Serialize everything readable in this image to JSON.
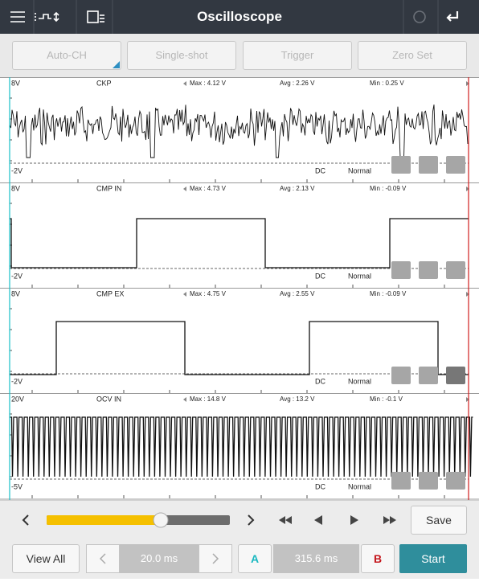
{
  "header": {
    "title": "Oscilloscope"
  },
  "toolbar": [
    "Auto-CH",
    "Single-shot",
    "Trigger",
    "Zero Set"
  ],
  "channels": [
    {
      "top": "8V",
      "name": "CKP",
      "max": "Max : 4.12 V",
      "avg": "Avg : 2.26 V",
      "min": "Min : 0.25 V",
      "bottom": "-2V",
      "coupling": "DC",
      "mode": "Normal"
    },
    {
      "top": "8V",
      "name": "CMP IN",
      "max": "Max : 4.73 V",
      "avg": "Avg : 2.13 V",
      "min": "Min : -0.09 V",
      "bottom": "-2V",
      "coupling": "DC",
      "mode": "Normal"
    },
    {
      "top": "8V",
      "name": "CMP EX",
      "max": "Max : 4.75 V",
      "avg": "Avg : 2.55 V",
      "min": "Min : -0.09 V",
      "bottom": "-2V",
      "coupling": "DC",
      "mode": "Normal"
    },
    {
      "top": "20V",
      "name": "OCV IN",
      "max": "Max : 14.8 V",
      "avg": "Avg : 13.2 V",
      "min": "Min : -0.1 V",
      "bottom": "-5V",
      "coupling": "DC",
      "mode": "Normal"
    }
  ],
  "controls": {
    "save": "Save",
    "view_all": "View All",
    "time_scale": "20.0 ms",
    "cursor_a": "A",
    "cursor_delta": "315.6 ms",
    "cursor_b": "B",
    "start": "Start"
  }
}
